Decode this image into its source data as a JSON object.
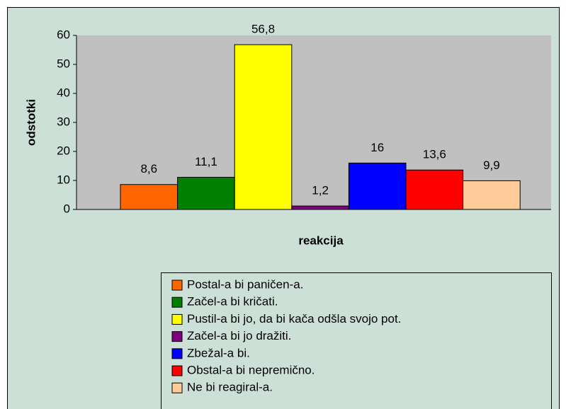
{
  "chart_data": {
    "type": "bar",
    "y_label": "odstotki",
    "x_label": "reakcija",
    "categories": [
      null
    ],
    "ylim": [
      0,
      60
    ],
    "yticks": [
      0,
      10,
      20,
      30,
      40,
      50,
      60
    ],
    "grid": false,
    "legend": "bottom",
    "series": [
      {
        "name": "Postal-a bi paničen-a.",
        "color": "#ff6600",
        "values": [
          8.6
        ],
        "value_labels": [
          "8,6"
        ]
      },
      {
        "name": "Začel-a bi kričati.",
        "color": "#008000",
        "values": [
          11.1
        ],
        "value_labels": [
          "11,1"
        ]
      },
      {
        "name": "Pustil-a bi jo, da bi kača odšla svojo pot.",
        "color": "#ffff00",
        "values": [
          56.8
        ],
        "value_labels": [
          "56,8"
        ]
      },
      {
        "name": "Začel-a bi jo dražiti.",
        "color": "#800080",
        "values": [
          1.2
        ],
        "value_labels": [
          "1,2"
        ]
      },
      {
        "name": "Zbežal-a bi.",
        "color": "#0000ff",
        "values": [
          16
        ],
        "value_labels": [
          "16"
        ]
      },
      {
        "name": "Obstal-a bi nepremično.",
        "color": "#ff0000",
        "values": [
          13.6
        ],
        "value_labels": [
          "13,6"
        ]
      },
      {
        "name": "Ne bi reagiral-a.",
        "color": "#ffcc99",
        "values": [
          9.9
        ],
        "value_labels": [
          "9,9"
        ]
      }
    ]
  }
}
